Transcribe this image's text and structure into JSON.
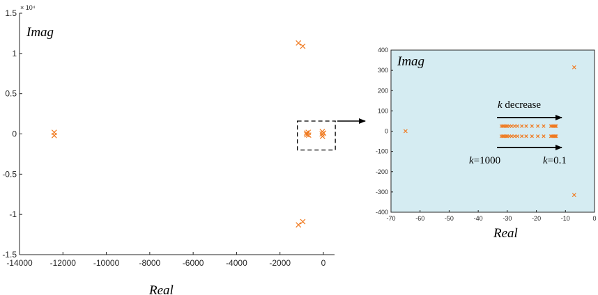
{
  "chart_data": [
    {
      "type": "scatter",
      "marker": "x",
      "color": "#f07a20",
      "xlabel": "Real",
      "ylabel": "Imag",
      "xlim": [
        -14000,
        200
      ],
      "ylim": [
        -15000,
        15000
      ],
      "y_multiplier_label": "× 10⁴",
      "x_ticks": [
        -14000,
        -12000,
        -10000,
        -8000,
        -6000,
        -4000,
        -2000,
        0
      ],
      "y_ticks": [
        {
          "value": -15000,
          "label": "-1.5"
        },
        {
          "value": -10000,
          "label": "-1"
        },
        {
          "value": -5000,
          "label": "-0.5"
        },
        {
          "value": 0,
          "label": "0"
        },
        {
          "value": 5000,
          "label": "0.5"
        },
        {
          "value": 10000,
          "label": "1"
        },
        {
          "value": 15000,
          "label": "1.5"
        }
      ],
      "points": [
        {
          "x": -12400,
          "y": 200
        },
        {
          "x": -12400,
          "y": -200
        },
        {
          "x": -1150,
          "y": 11300
        },
        {
          "x": -950,
          "y": 10900
        },
        {
          "x": -1150,
          "y": -11300
        },
        {
          "x": -950,
          "y": -10900
        },
        {
          "x": -780,
          "y": 100
        },
        {
          "x": -760,
          "y": -100
        },
        {
          "x": -700,
          "y": 200
        },
        {
          "x": -680,
          "y": -150
        },
        {
          "x": -50,
          "y": 300
        },
        {
          "x": -40,
          "y": -300
        },
        {
          "x": -60,
          "y": 0
        },
        {
          "x": 10,
          "y": 100
        }
      ],
      "zoom_box": {
        "x": [
          -1200,
          550
        ],
        "y": [
          -2000,
          1600
        ]
      }
    },
    {
      "type": "scatter",
      "marker": "x",
      "color": "#f07a20",
      "background": "#d5ecf2",
      "xlabel": "Real",
      "ylabel": "Imag",
      "xlim": [
        -70,
        0
      ],
      "ylim": [
        -400,
        400
      ],
      "x_ticks": [
        -70,
        -60,
        -50,
        -40,
        -30,
        -20,
        -10,
        0
      ],
      "y_ticks": [
        -400,
        -300,
        -200,
        -100,
        0,
        100,
        200,
        300,
        400
      ],
      "points": [
        {
          "x": -65,
          "y": 0
        },
        {
          "x": -7,
          "y": 315
        },
        {
          "x": -7,
          "y": -315
        }
      ],
      "trajectory_rows": [
        {
          "y": 25,
          "x": [
            -32,
            -31.5,
            -31,
            -30.5,
            -30,
            -29.3,
            -28.5,
            -27.5,
            -26.5,
            -25,
            -23.5,
            -21.5,
            -19.5,
            -17.5,
            -15,
            -14.6,
            -14.2,
            -13.8,
            -13.5,
            -13.2
          ]
        },
        {
          "y": -25,
          "x": [
            -32,
            -31.5,
            -31,
            -30.5,
            -30,
            -29.3,
            -28.5,
            -27.5,
            -26.5,
            -25,
            -23.5,
            -21.5,
            -19.5,
            -17.5,
            -15,
            -14.6,
            -14.2,
            -13.8,
            -13.5,
            -13.2
          ]
        }
      ],
      "annotations": {
        "top_arrow_label_var": "k",
        "top_arrow_label_text": " decrease",
        "left_label_var": "k",
        "left_label_value": "=1000",
        "right_label_var": "k",
        "right_label_value": "=0.1"
      }
    }
  ]
}
